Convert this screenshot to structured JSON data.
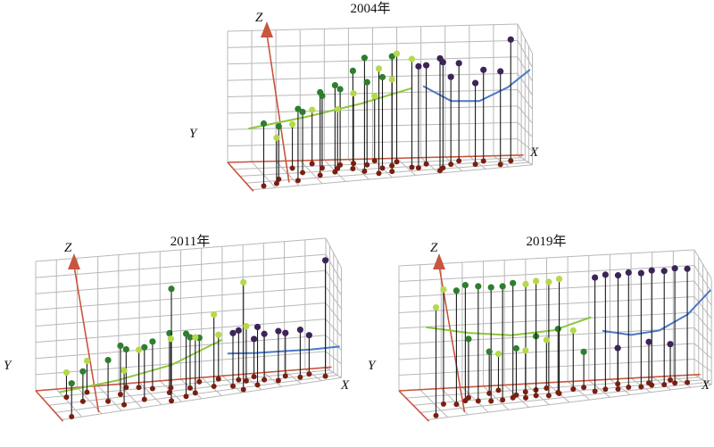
{
  "colors": {
    "grid": "#b8b8b8",
    "axis": "#c8553d",
    "stem": "#1a1a1a",
    "ground_point": "#7a1f10",
    "green_dark": "#2f7d2f",
    "green_light": "#b5d94a",
    "purple": "#3d2457",
    "curve_green": "#8cc63f",
    "curve_blue": "#4a78c8"
  },
  "axis_labels": {
    "x": "X",
    "y": "Y",
    "z": "Z"
  },
  "chart_data": [
    {
      "type": "scatter3d",
      "title": "2004年",
      "grid": true,
      "series": [
        {
          "color": "green_dark",
          "points": [
            [
              0.05,
              0.9,
              0.55
            ],
            [
              0.12,
              0.7,
              0.45
            ],
            [
              0.18,
              0.8,
              0.62
            ],
            [
              0.22,
              0.5,
              0.5
            ],
            [
              0.27,
              0.65,
              0.7
            ],
            [
              0.3,
              0.35,
              0.58
            ],
            [
              0.33,
              0.55,
              0.72
            ],
            [
              0.37,
              0.25,
              0.6
            ],
            [
              0.4,
              0.45,
              0.8
            ],
            [
              0.43,
              0.6,
              0.95
            ],
            [
              0.46,
              0.3,
              0.66
            ],
            [
              0.5,
              0.5,
              0.75
            ],
            [
              0.52,
              0.7,
              0.98
            ]
          ]
        },
        {
          "color": "green_light",
          "points": [
            [
              0.1,
              0.85,
              0.4
            ],
            [
              0.2,
              0.3,
              0.35
            ],
            [
              0.28,
              0.15,
              0.42
            ],
            [
              0.35,
              0.4,
              0.48
            ],
            [
              0.42,
              0.2,
              0.55
            ],
            [
              0.47,
              0.75,
              0.9
            ],
            [
              0.5,
              0.1,
              0.5
            ],
            [
              0.54,
              0.4,
              0.7
            ],
            [
              0.57,
              0.2,
              0.85
            ],
            [
              0.6,
              0.55,
              0.9
            ]
          ]
        },
        {
          "color": "purple",
          "points": [
            [
              0.62,
              0.6,
              0.85
            ],
            [
              0.66,
              0.4,
              0.8
            ],
            [
              0.7,
              0.7,
              0.9
            ],
            [
              0.74,
              0.5,
              0.72
            ],
            [
              0.78,
              0.3,
              0.78
            ],
            [
              0.82,
              0.6,
              0.68
            ],
            [
              0.86,
              0.4,
              0.74
            ],
            [
              0.9,
              0.75,
              0.8
            ],
            [
              0.95,
              0.5,
              1.0
            ],
            [
              0.68,
              0.85,
              0.98
            ]
          ]
        }
      ],
      "curves": [
        {
          "color": "curve_green",
          "points": [
            [
              0,
              0.85,
              0.5
            ],
            [
              0.2,
              0.85,
              0.56
            ],
            [
              0.4,
              0.85,
              0.64
            ],
            [
              0.58,
              0.85,
              0.74
            ]
          ]
        },
        {
          "color": "curve_blue",
          "points": [
            [
              0.62,
              0.85,
              0.75
            ],
            [
              0.72,
              0.85,
              0.6
            ],
            [
              0.82,
              0.85,
              0.58
            ],
            [
              0.92,
              0.85,
              0.68
            ],
            [
              1,
              0.85,
              0.82
            ]
          ]
        }
      ]
    },
    {
      "type": "scatter3d",
      "title": "2011年",
      "grid": true,
      "series": [
        {
          "color": "green_dark",
          "points": [
            [
              0.04,
              0.95,
              0.3
            ],
            [
              0.12,
              0.5,
              0.25
            ],
            [
              0.2,
              0.6,
              0.35
            ],
            [
              0.26,
              0.4,
              0.4
            ],
            [
              0.32,
              0.7,
              0.45
            ],
            [
              0.38,
              0.3,
              0.38
            ],
            [
              0.42,
              0.55,
              0.5
            ],
            [
              0.46,
              0.8,
              0.55
            ],
            [
              0.5,
              0.45,
              0.42
            ],
            [
              0.55,
              0.2,
              0.35
            ],
            [
              0.4,
              0.9,
              1.0
            ],
            [
              0.3,
              0.15,
              0.3
            ]
          ]
        },
        {
          "color": "green_light",
          "points": [
            [
              0.08,
              0.3,
              0.2
            ],
            [
              0.16,
              0.2,
              0.25
            ],
            [
              0.24,
              0.8,
              0.3
            ],
            [
              0.34,
              0.2,
              0.3
            ],
            [
              0.44,
              0.35,
              0.4
            ],
            [
              0.5,
              0.7,
              0.48
            ],
            [
              0.58,
              0.5,
              0.6
            ],
            [
              0.62,
              0.15,
              0.35
            ],
            [
              0.66,
              0.85,
              0.95
            ],
            [
              0.7,
              0.4,
              0.45
            ]
          ]
        },
        {
          "color": "purple",
          "points": [
            [
              0.64,
              0.6,
              0.45
            ],
            [
              0.68,
              0.3,
              0.4
            ],
            [
              0.72,
              0.7,
              0.5
            ],
            [
              0.76,
              0.45,
              0.38
            ],
            [
              0.8,
              0.6,
              0.42
            ],
            [
              0.84,
              0.35,
              0.35
            ],
            [
              0.88,
              0.55,
              0.4
            ],
            [
              0.92,
              0.4,
              0.32
            ],
            [
              0.96,
              0.7,
              1.0
            ],
            [
              0.74,
              0.2,
              0.3
            ]
          ]
        }
      ],
      "curves": [
        {
          "color": "curve_green",
          "points": [
            [
              0,
              0.9,
              0.22
            ],
            [
              0.2,
              0.9,
              0.25
            ],
            [
              0.4,
              0.9,
              0.32
            ],
            [
              0.58,
              0.9,
              0.48
            ]
          ]
        },
        {
          "color": "curve_blue",
          "points": [
            [
              0.6,
              0.9,
              0.35
            ],
            [
              0.7,
              0.9,
              0.32
            ],
            [
              0.8,
              0.9,
              0.3
            ],
            [
              0.9,
              0.9,
              0.28
            ],
            [
              1,
              0.9,
              0.27
            ]
          ]
        }
      ]
    },
    {
      "type": "scatter3d",
      "title": "2019年",
      "grid": true,
      "series": [
        {
          "color": "green_dark",
          "points": [
            [
              0.14,
              0.6,
              1.0
            ],
            [
              0.18,
              0.5,
              1.0
            ],
            [
              0.22,
              0.55,
              1.0
            ],
            [
              0.26,
              0.6,
              1.0
            ],
            [
              0.3,
              0.6,
              1.0
            ],
            [
              0.34,
              0.55,
              1.0
            ],
            [
              0.2,
              0.4,
              0.5
            ],
            [
              0.28,
              0.3,
              0.35
            ],
            [
              0.36,
              0.45,
              0.4
            ],
            [
              0.44,
              0.3,
              0.45
            ],
            [
              0.5,
              0.5,
              0.55
            ],
            [
              0.6,
              0.35,
              0.3
            ]
          ]
        },
        {
          "color": "green_light",
          "points": [
            [
              0.04,
              0.9,
              1.0
            ],
            [
              0.1,
              0.55,
              1.0
            ],
            [
              0.38,
              0.6,
              1.0
            ],
            [
              0.42,
              0.55,
              1.0
            ],
            [
              0.46,
              0.6,
              1.0
            ],
            [
              0.5,
              0.55,
              1.0
            ],
            [
              0.32,
              0.2,
              0.3
            ],
            [
              0.4,
              0.35,
              0.35
            ],
            [
              0.48,
              0.25,
              0.4
            ],
            [
              0.56,
              0.4,
              0.5
            ]
          ]
        },
        {
          "color": "purple",
          "points": [
            [
              0.62,
              0.6,
              1.0
            ],
            [
              0.66,
              0.55,
              1.0
            ],
            [
              0.7,
              0.6,
              1.0
            ],
            [
              0.74,
              0.55,
              1.0
            ],
            [
              0.78,
              0.6,
              1.0
            ],
            [
              0.82,
              0.55,
              1.0
            ],
            [
              0.86,
              0.6,
              1.0
            ],
            [
              0.9,
              0.55,
              1.0
            ],
            [
              0.94,
              0.6,
              1.0
            ],
            [
              0.72,
              0.3,
              0.3
            ],
            [
              0.82,
              0.4,
              0.35
            ],
            [
              0.9,
              0.3,
              0.3
            ]
          ]
        }
      ],
      "curves": [
        {
          "color": "curve_green",
          "points": [
            [
              0,
              0.95,
              0.85
            ],
            [
              0.15,
              0.95,
              0.75
            ],
            [
              0.3,
              0.95,
              0.68
            ],
            [
              0.45,
              0.95,
              0.68
            ],
            [
              0.58,
              0.95,
              0.76
            ]
          ]
        },
        {
          "color": "curve_blue",
          "points": [
            [
              0.62,
              0.95,
              0.62
            ],
            [
              0.72,
              0.95,
              0.55
            ],
            [
              0.82,
              0.95,
              0.56
            ],
            [
              0.92,
              0.95,
              0.68
            ],
            [
              1,
              0.95,
              0.88
            ]
          ]
        }
      ]
    }
  ]
}
